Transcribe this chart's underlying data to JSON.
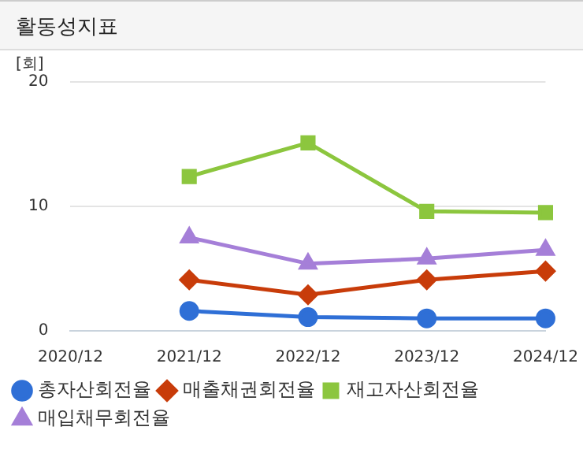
{
  "chart_data": {
    "type": "line",
    "title": "활동성지표",
    "ylabel": "[회]",
    "categories": [
      "2020/12",
      "2021/12",
      "2022/12",
      "2023/12",
      "2024/12"
    ],
    "series": [
      {
        "name": "총자산회전율",
        "color": "#2f6fd6",
        "marker": "circle",
        "values": [
          null,
          1.6,
          1.1,
          1.0,
          1.0
        ]
      },
      {
        "name": "매출채권회전율",
        "color": "#c83c0a",
        "marker": "diamond",
        "values": [
          null,
          4.1,
          2.9,
          4.1,
          4.8
        ]
      },
      {
        "name": "재고자산회전율",
        "color": "#8cc63e",
        "marker": "square",
        "values": [
          null,
          12.4,
          15.1,
          9.6,
          9.5
        ]
      },
      {
        "name": "매입채무회전율",
        "color": "#a57fd8",
        "marker": "triangle",
        "values": [
          null,
          7.5,
          5.4,
          5.8,
          6.5
        ]
      }
    ],
    "ylim": [
      0,
      20
    ],
    "yticks": [
      0,
      10,
      20
    ],
    "grid": "y",
    "legend": "bottom"
  }
}
